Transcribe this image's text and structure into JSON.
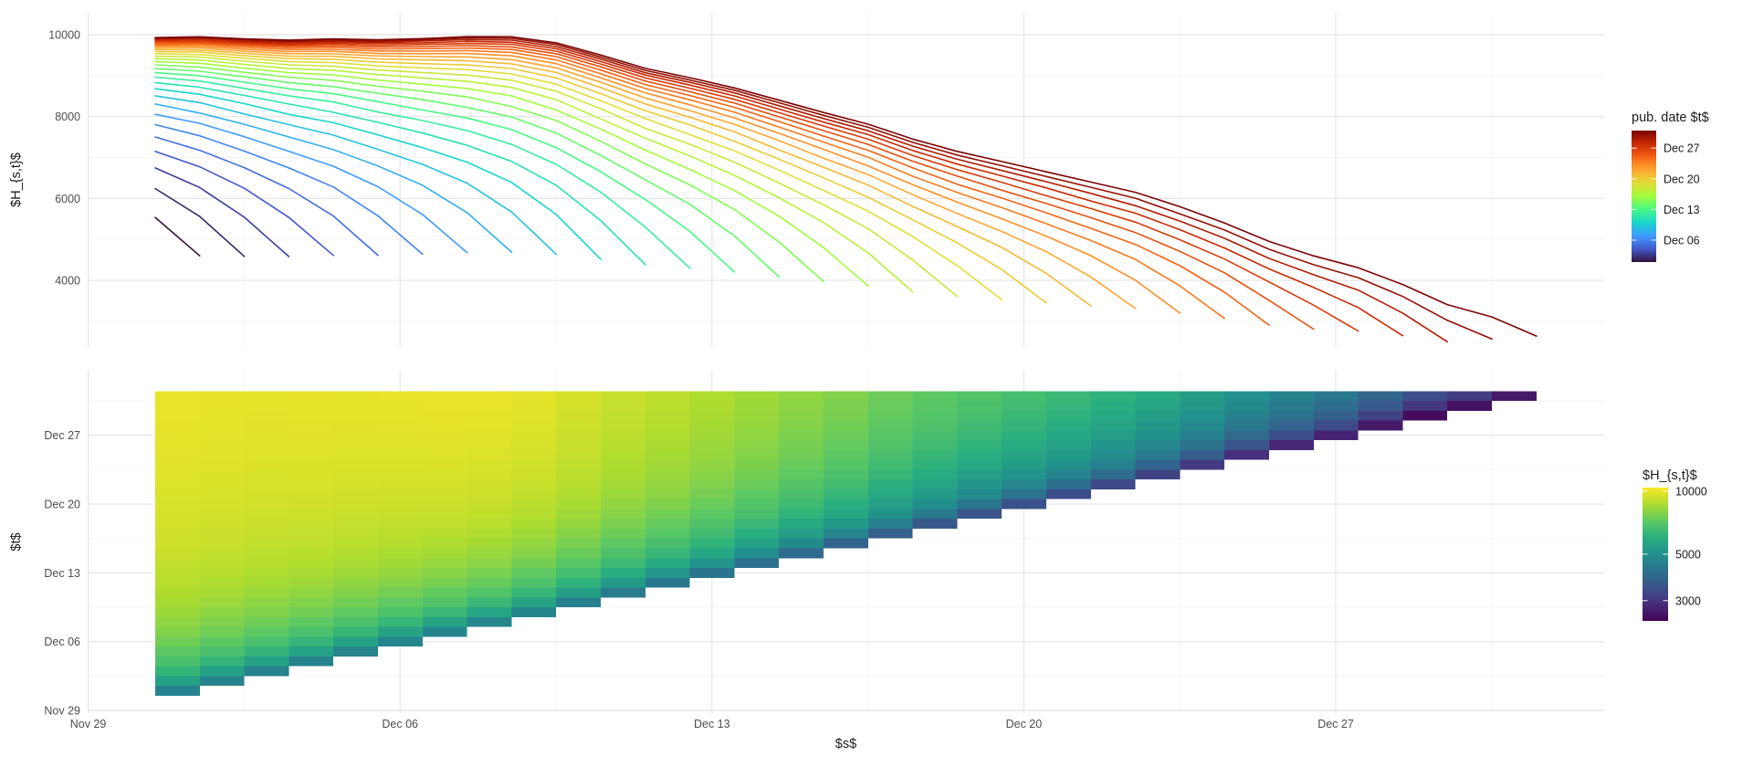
{
  "page": {
    "background": "#ffffff"
  },
  "top_chart": {
    "y_title": "$H_{s,t}$",
    "y_tick_labels": [
      "10000",
      "8000",
      "6000",
      "4000"
    ],
    "legend": {
      "title": "pub. date $t$",
      "tick_labels": [
        "Dec 27",
        "Dec 20",
        "Dec 13",
        "Dec 06"
      ]
    }
  },
  "bottom_chart": {
    "x_title": "$s$",
    "y_title": "$t$",
    "x_tick_labels": [
      "Nov 29",
      "Dec 06",
      "Dec 13",
      "Dec 20",
      "Dec 27"
    ],
    "y_tick_labels": [
      "Dec 27",
      "Dec 20",
      "Dec 13",
      "Dec 06",
      "Nov 29"
    ],
    "legend": {
      "title": "$H_{s,t}$",
      "tick_labels": [
        "10000",
        "5000",
        "3000"
      ],
      "tick_values": [
        10000,
        5000,
        3000
      ]
    }
  },
  "colormaps": {
    "turbo": [
      "#30123B",
      "#4458CB",
      "#3E9BFE",
      "#18D6CB",
      "#46F884",
      "#A2FC3C",
      "#E1DD37",
      "#FEA632",
      "#F36315",
      "#C92903",
      "#7A0403"
    ],
    "viridis": [
      "#440154",
      "#472D7B",
      "#3B528B",
      "#2C728E",
      "#21918C",
      "#28AE80",
      "#5EC962",
      "#ADDC30",
      "#FDE725"
    ]
  },
  "chart_data": [
    {
      "type": "line",
      "title": "",
      "xlabel": "",
      "ylabel": "$H_{s,t}$",
      "ylim": [
        2300,
        10500
      ],
      "yticks": [
        4000,
        6000,
        8000,
        10000
      ],
      "x_range": {
        "start": "Nov 30",
        "end": "Dec 31",
        "n_days": 32
      },
      "grid": "major and minor, light gray, weekly x-breaks at Nov 29 / Dec 06 / Dec 13 / Dec 20 / Dec 27",
      "legend": {
        "title": "pub. date $t$",
        "position": "right",
        "scale": "turbo colorbar, Dec 01 (bottom) to Dec 31 (top)",
        "ticks": [
          "Dec 27",
          "Dec 20",
          "Dec 13",
          "Dec 06"
        ]
      },
      "model": "One line per publication date t = Dec 01 .. Dec 31 (31 lines). Line t covers report dates s = Nov 30 .. t. Value H(s,t) = final_total[s] * completeness[t-s].",
      "final_total": [
        10070,
        10110,
        10080,
        10070,
        10130,
        10140,
        10200,
        10280,
        10310,
        10200,
        9930,
        9640,
        9450,
        9245,
        8985,
        8730,
        8495,
        8180,
        7935,
        7755,
        7585,
        7425,
        7280,
        7030,
        6750,
        6390,
        6175,
        6070,
        5820,
        5500,
        5650,
        5800
      ],
      "completeness": [
        0.455,
        0.55,
        0.62,
        0.67,
        0.71,
        0.745,
        0.775,
        0.8,
        0.825,
        0.845,
        0.862,
        0.877,
        0.89,
        0.901,
        0.911,
        0.92,
        0.928,
        0.935,
        0.941,
        0.947,
        0.952,
        0.957,
        0.961,
        0.965,
        0.968,
        0.971,
        0.974,
        0.977,
        0.98,
        0.982,
        0.984,
        0.986
      ]
    },
    {
      "type": "heatmap",
      "title": "",
      "xlabel": "$s$",
      "ylabel": "$t$",
      "xticks": [
        "Nov 29",
        "Dec 06",
        "Dec 13",
        "Dec 20",
        "Dec 27"
      ],
      "yticks": [
        "Dec 27",
        "Dec 20",
        "Dec 13",
        "Dec 06",
        "Nov 29"
      ],
      "fill_label": "$H_{s,t}$",
      "fill_scale": "viridis, log scale",
      "fill_domain": [
        2400,
        10400
      ],
      "fill_ticks": [
        10000,
        5000,
        3000
      ],
      "cells": "Lower-triangular reporting triangle: columns s = Dec 01 .. Dec 31, rows t = s .. Dec 31; cell value = final_total[s] * completeness[t-s] (same data as line panel)."
    }
  ]
}
